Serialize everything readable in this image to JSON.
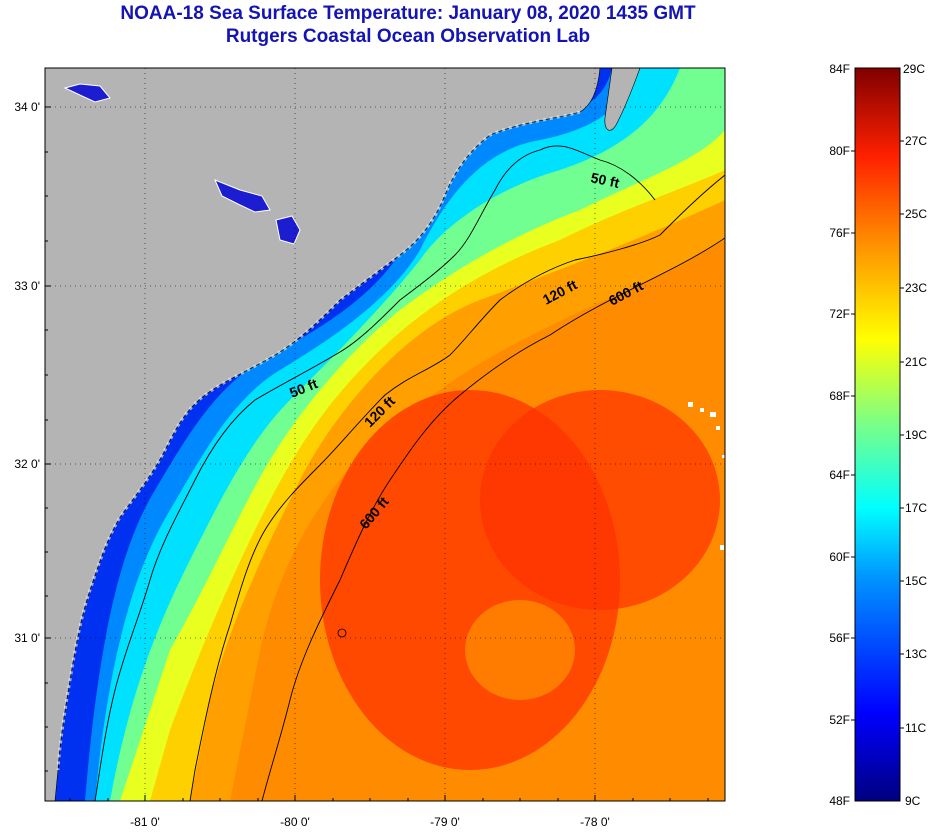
{
  "title": "NOAA-18 Sea Surface Temperature:  January 08, 2020 1435 GMT",
  "subtitle": "Rutgers Coastal Ocean Observation Lab",
  "axes": {
    "lat_ticks": [
      "34 0'",
      "33 0'",
      "32 0'",
      "31 0'"
    ],
    "lon_ticks": [
      "-81 0'",
      "-80 0'",
      "-79 0'",
      "-78 0'"
    ]
  },
  "contours": [
    {
      "label": "50 ft"
    },
    {
      "label": "50 ft"
    },
    {
      "label": "120 ft"
    },
    {
      "label": "120 ft"
    },
    {
      "label": "600 ft"
    },
    {
      "label": "600 ft"
    }
  ],
  "colorbar": {
    "fahrenheit": [
      "84F",
      "80F",
      "76F",
      "72F",
      "68F",
      "64F",
      "60F",
      "56F",
      "52F",
      "48F"
    ],
    "celsius": [
      "29C",
      "27C",
      "25C",
      "23C",
      "21C",
      "19C",
      "17C",
      "15C",
      "13C",
      "11C",
      "9C"
    ]
  },
  "colors": {
    "land": "#b4b4b4",
    "title": "#1414b4",
    "cold": "#0000a0",
    "warm": "#a00000"
  }
}
